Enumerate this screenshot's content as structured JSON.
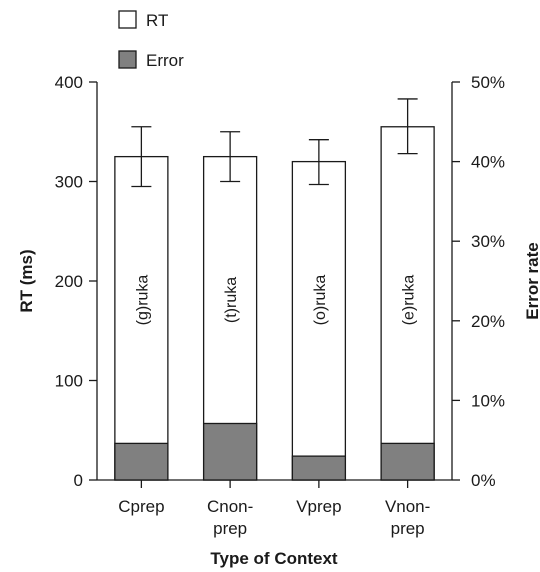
{
  "chart_data": {
    "type": "bar",
    "title": "",
    "xlabel": "Type of Context",
    "ylabel_left": "RT (ms)",
    "ylabel_right": "Error rate",
    "ylim_left": [
      0,
      400
    ],
    "ylim_right": [
      0,
      50
    ],
    "yticks_left": [
      "0",
      "100",
      "200",
      "300",
      "400"
    ],
    "yticks_right": [
      "0%",
      "10%",
      "20%",
      "30%",
      "40%",
      "50%"
    ],
    "grid": false,
    "legend_position": "top-left",
    "legend": [
      {
        "name": "RT",
        "color": "#ffffff"
      },
      {
        "name": "Error",
        "color": "#808080"
      }
    ],
    "categories": [
      {
        "line1": "Cprep",
        "line2": ""
      },
      {
        "line1": "Cnon-",
        "line2": "prep"
      },
      {
        "line1": "Vprep",
        "line2": ""
      },
      {
        "line1": "Vnon-",
        "line2": "prep"
      }
    ],
    "bar_labels": [
      "(g)ruka",
      "(t)ruka",
      "(o)ruka",
      "(e)ruka"
    ],
    "series": [
      {
        "name": "RT",
        "axis": "left",
        "values": [
          325,
          325,
          320,
          355
        ],
        "error_low": [
          295,
          300,
          297,
          328
        ],
        "error_high": [
          355,
          350,
          342,
          383
        ]
      },
      {
        "name": "Error",
        "axis": "right",
        "values": [
          4.6,
          7.1,
          3.0,
          4.6
        ]
      }
    ]
  }
}
